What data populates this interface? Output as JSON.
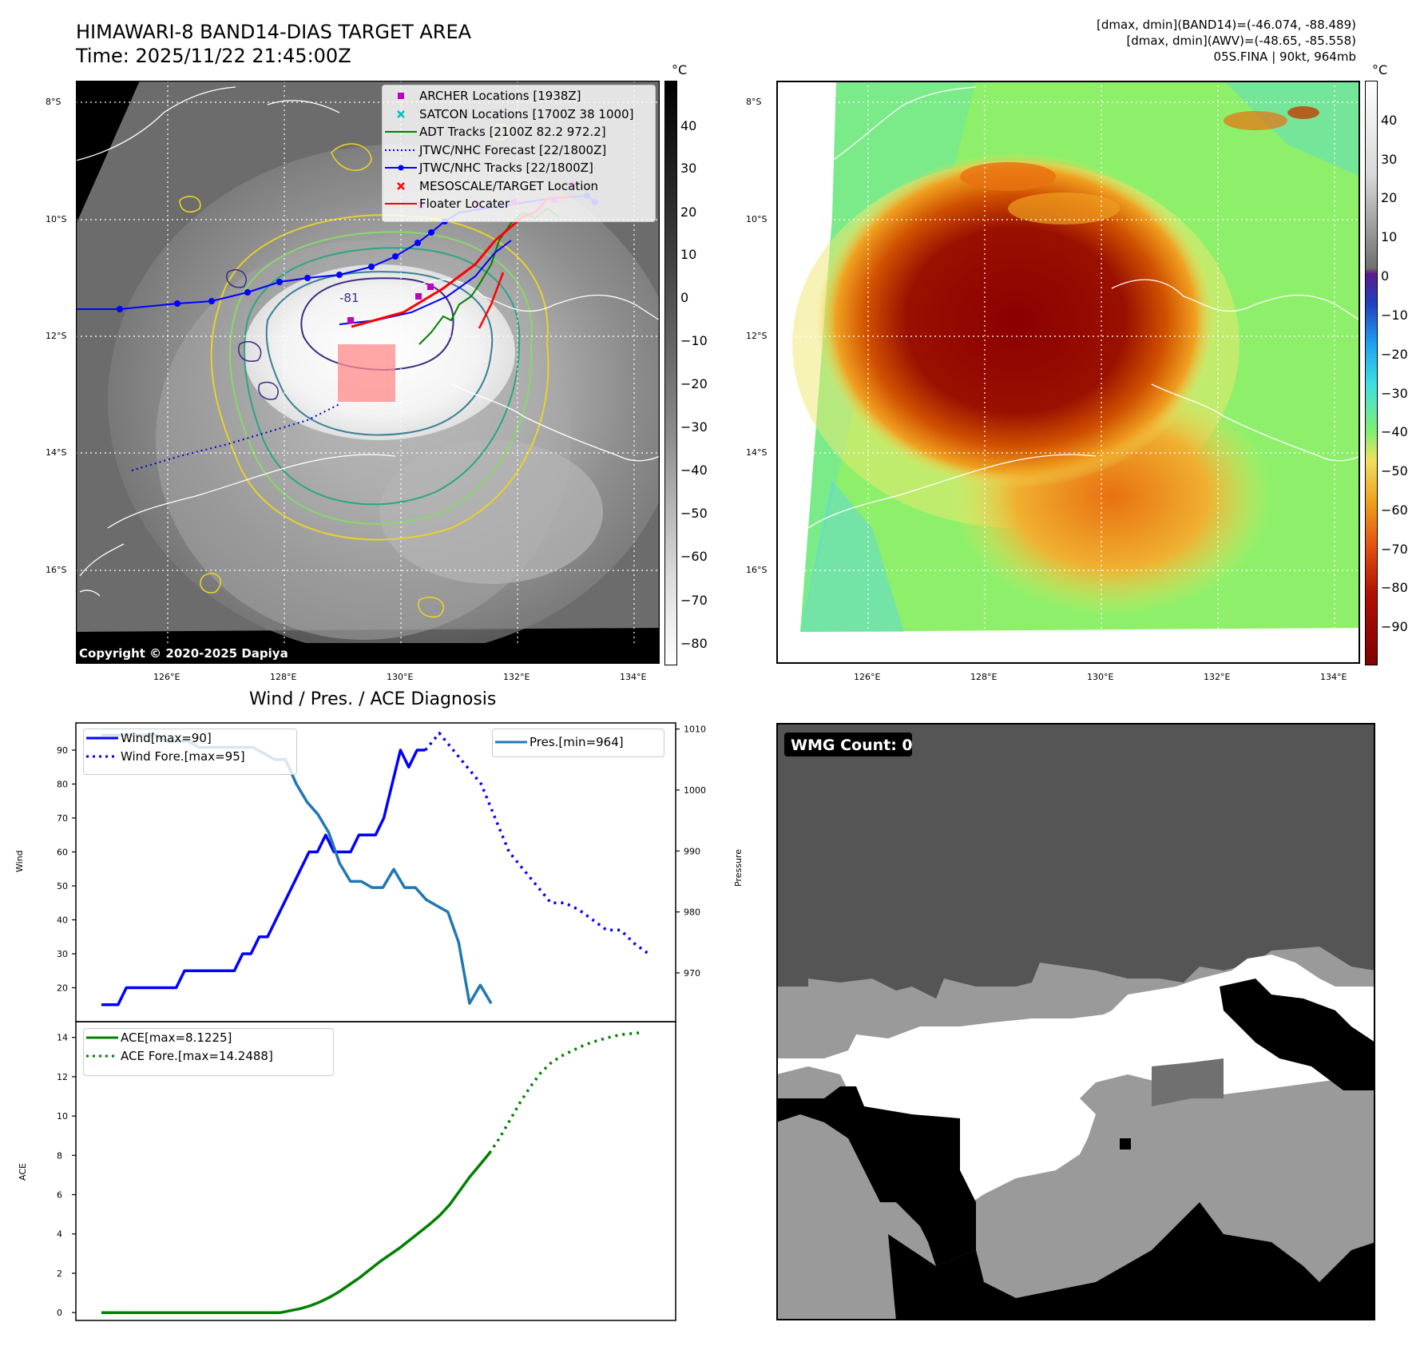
{
  "header": {
    "title_line1": "HIMAWARI-8 BAND14-DIAS TARGET AREA",
    "title_line2": "Time: 2025/11/22 21:45:00Z",
    "info_line1": "[dmax, dmin](BAND14)=(-46.074, -88.489)",
    "info_line2": "[dmax, dmin](AWV)=(-48.65, -85.558)",
    "info_line3": "05S.FINA | 90kt, 964mb"
  },
  "map_axes": {
    "lat_labels": [
      "8°S",
      "10°S",
      "12°S",
      "14°S",
      "16°S"
    ],
    "lon_labels": [
      "126°E",
      "128°E",
      "130°E",
      "132°E",
      "134°E"
    ],
    "copyright": "Copyright © 2020-2025 Dapiya",
    "contour_label": "-81"
  },
  "map_legend": [
    {
      "label": "ARCHER Locations [1938Z]",
      "marker": "square",
      "color": "#c000c0"
    },
    {
      "label": "SATCON Locations [1700Z 38 1000]",
      "marker": "x",
      "color": "#00c0c0"
    },
    {
      "label": "ADT Tracks [2100Z 82.2 972.2]",
      "marker": "line",
      "color": "#008000"
    },
    {
      "label": "JTWC/NHC Forecast [22/1800Z]",
      "marker": "dotted",
      "color": "#0000cc"
    },
    {
      "label": "JTWC/NHC Tracks [22/1800Z]",
      "marker": "line-dot",
      "color": "#0000ff"
    },
    {
      "label": "MESOSCALE/TARGET Location",
      "marker": "x",
      "color": "#ff0000"
    },
    {
      "label": "Floater Locater",
      "marker": "line",
      "color": "#ff0000"
    }
  ],
  "colorbar_gray": {
    "unit": "°C",
    "ticks": [
      "40",
      "30",
      "20",
      "10",
      "0",
      "−10",
      "−20",
      "−30",
      "−40",
      "−50",
      "−60",
      "−70",
      "−80"
    ]
  },
  "colorbar_color": {
    "unit": "°C",
    "ticks": [
      "40",
      "30",
      "20",
      "10",
      "0",
      "−10",
      "−20",
      "−30",
      "−40",
      "−50",
      "−60",
      "−70",
      "−80",
      "−90"
    ]
  },
  "wmg": {
    "label": "WMG Count: 0"
  },
  "chart_data": [
    {
      "type": "line",
      "title": "Wind / Pres. / ACE Diagnosis",
      "ylabel": "Wind",
      "ylabel_right": "Pressure",
      "ylim": [
        10,
        98
      ],
      "ylim_right": [
        962,
        1011
      ],
      "yticks": [
        20,
        30,
        40,
        50,
        60,
        70,
        80,
        90
      ],
      "yticks_right": [
        970,
        980,
        990,
        1000,
        1010
      ],
      "series": [
        {
          "name": "Wind[max=90]",
          "style": "solid",
          "color": "#0000ff",
          "axis": "left",
          "values": [
            15,
            15,
            15,
            20,
            20,
            20,
            20,
            20,
            20,
            20,
            25,
            25,
            25,
            25,
            25,
            25,
            25,
            30,
            30,
            35,
            35,
            40,
            45,
            50,
            55,
            60,
            60,
            65,
            60,
            60,
            60,
            65,
            65,
            65,
            70,
            80,
            90,
            85,
            90,
            90
          ]
        },
        {
          "name": "Wind Fore.[max=95]",
          "style": "dotted",
          "color": "#0000ff",
          "axis": "left",
          "values": [
            90,
            95,
            90,
            85,
            80,
            70,
            60,
            55,
            50,
            45,
            45,
            43,
            40,
            37,
            37,
            33,
            30
          ]
        },
        {
          "name": "Pres.[min=964]",
          "style": "solid",
          "color": "#1f77b4",
          "axis": "right",
          "values": [
            1009,
            1009,
            1009,
            1009,
            1009,
            1009,
            1008,
            1008,
            1008,
            1007,
            1007,
            1007,
            1007,
            1007,
            1007,
            1006,
            1005,
            1005,
            1001,
            998,
            996,
            993,
            988,
            985,
            985,
            984,
            984,
            987,
            984,
            984,
            982,
            981,
            980,
            975,
            965,
            968,
            965
          ]
        }
      ]
    },
    {
      "type": "line",
      "ylabel": "ACE",
      "ylim": [
        -0.4,
        14.8
      ],
      "yticks": [
        0,
        2,
        4,
        6,
        8,
        10,
        12,
        14
      ],
      "series": [
        {
          "name": "ACE[max=8.1225]",
          "style": "solid",
          "color": "#008000",
          "values": [
            0,
            0,
            0,
            0,
            0,
            0,
            0,
            0,
            0,
            0,
            0,
            0,
            0,
            0,
            0,
            0,
            0,
            0,
            0,
            0.1,
            0.2,
            0.35,
            0.55,
            0.8,
            1.1,
            1.45,
            1.8,
            2.2,
            2.6,
            2.95,
            3.3,
            3.7,
            4.1,
            4.5,
            4.95,
            5.5,
            6.2,
            6.9,
            7.5,
            8.12
          ]
        },
        {
          "name": "ACE Fore.[max=14.2488]",
          "style": "dotted",
          "color": "#008000",
          "values": [
            8.12,
            8.9,
            9.8,
            10.7,
            11.5,
            12.2,
            12.7,
            13.05,
            13.3,
            13.55,
            13.75,
            13.9,
            14.05,
            14.15,
            14.2,
            14.25
          ]
        }
      ]
    }
  ]
}
